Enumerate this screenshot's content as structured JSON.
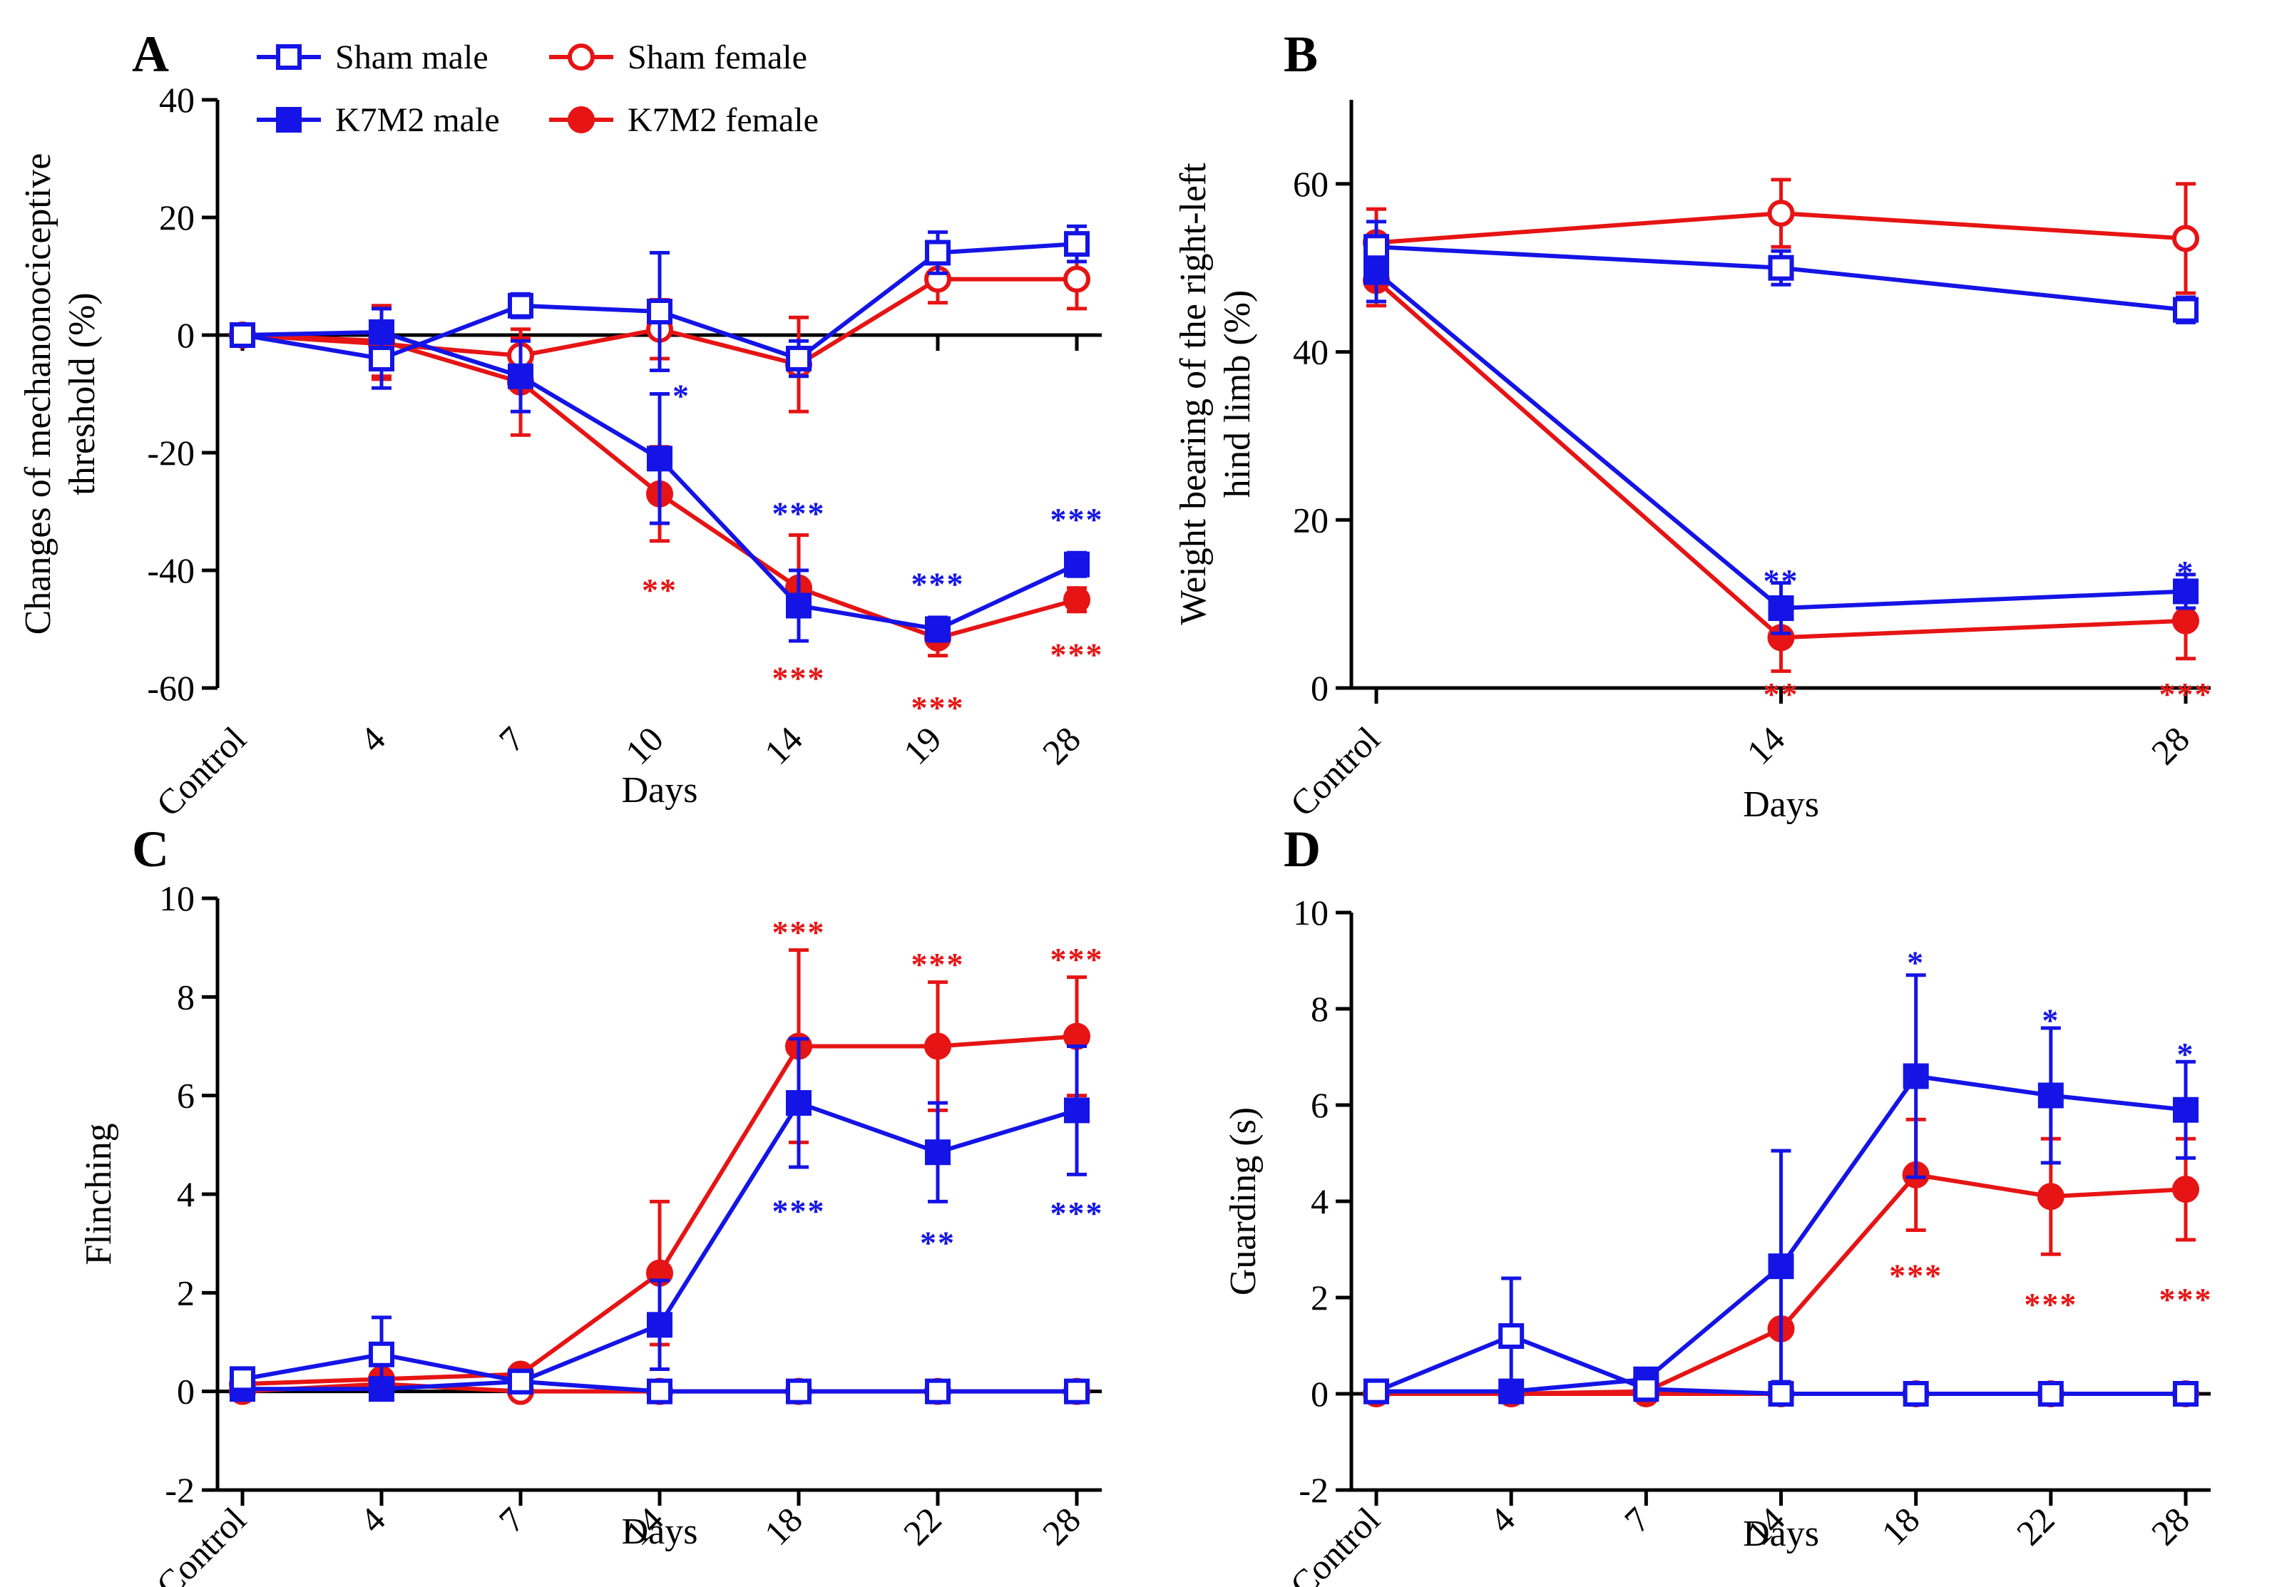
{
  "colors": {
    "male": "#1414e6",
    "female": "#e61414",
    "axis": "#000000"
  },
  "legend": {
    "entries": [
      {
        "label": "Sham male",
        "color": "#1414e6",
        "marker": "square",
        "filled": false
      },
      {
        "label": "Sham female",
        "color": "#e61414",
        "marker": "circle",
        "filled": false
      },
      {
        "label": "K7M2 male",
        "color": "#1414e6",
        "marker": "square",
        "filled": true
      },
      {
        "label": "K7M2 female",
        "color": "#e61414",
        "marker": "circle",
        "filled": true
      }
    ]
  },
  "chart_data": [
    {
      "id": "A",
      "letter": "A",
      "type": "line",
      "ylabel": "Changes of mechanonociceptive threshold (%)",
      "ylabel_lines": [
        "Changes of mechanonociceptive",
        "threshold (%)"
      ],
      "xlabel": "Days",
      "categories": [
        "Control",
        "4",
        "7",
        "10",
        "14",
        "19",
        "28"
      ],
      "ylim": [
        -60,
        40
      ],
      "yticks": [
        -60,
        -40,
        -20,
        0,
        20,
        40
      ],
      "series": [
        {
          "name": "Sham male",
          "color": "#1414e6",
          "marker": "square",
          "filled": false,
          "values": [
            0,
            -4,
            5,
            4,
            -4,
            14,
            15.5
          ],
          "errors": [
            0,
            5,
            2,
            10,
            3,
            3.5,
            3
          ]
        },
        {
          "name": "Sham female",
          "color": "#e61414",
          "marker": "circle",
          "filled": false,
          "values": [
            0,
            -1.5,
            -3.5,
            1,
            -5,
            9.5,
            9.5
          ],
          "errors": [
            0,
            6,
            3,
            5,
            8,
            4,
            5
          ]
        },
        {
          "name": "K7M2 male",
          "color": "#1414e6",
          "marker": "square",
          "filled": true,
          "values": [
            0,
            0.5,
            -7,
            -21,
            -46,
            -50,
            -39
          ],
          "errors": [
            0,
            4,
            6,
            11,
            6,
            2,
            2
          ]
        },
        {
          "name": "K7M2 female",
          "color": "#e61414",
          "marker": "circle",
          "filled": true,
          "values": [
            0,
            -1,
            -8,
            -27,
            -43,
            -51.5,
            -45
          ],
          "errors": [
            0,
            6,
            9,
            8,
            9,
            3,
            2
          ]
        }
      ],
      "annotations": [
        {
          "text": "*",
          "x": 3,
          "y": -10,
          "color": "#1414e6",
          "anchor": "start"
        },
        {
          "text": "**",
          "x": 3,
          "y": -43,
          "color": "#e61414",
          "anchor": "middle"
        },
        {
          "text": "***",
          "x": 4,
          "y": -30,
          "color": "#1414e6",
          "anchor": "middle"
        },
        {
          "text": "***",
          "x": 4,
          "y": -58,
          "color": "#e61414",
          "anchor": "middle"
        },
        {
          "text": "***",
          "x": 5,
          "y": -42,
          "color": "#1414e6",
          "anchor": "middle"
        },
        {
          "text": "***",
          "x": 5,
          "y": -63,
          "color": "#e61414",
          "anchor": "middle"
        },
        {
          "text": "***",
          "x": 6,
          "y": -31,
          "color": "#1414e6",
          "anchor": "middle"
        },
        {
          "text": "***",
          "x": 6,
          "y": -54,
          "color": "#e61414",
          "anchor": "middle"
        }
      ]
    },
    {
      "id": "B",
      "letter": "B",
      "type": "line",
      "ylabel": "Weight bearing of the right-left hind limb (%)",
      "ylabel_lines": [
        "Weight bearing of the right-left",
        "hind limb (%)"
      ],
      "xlabel": "Days",
      "categories": [
        "Control",
        "14",
        "28"
      ],
      "ylim": [
        0,
        70
      ],
      "yticks": [
        0,
        20,
        40,
        60
      ],
      "series": [
        {
          "name": "Sham male",
          "color": "#1414e6",
          "marker": "square",
          "filled": false,
          "values": [
            52.5,
            50,
            45
          ],
          "errors": [
            3,
            2,
            1.5
          ]
        },
        {
          "name": "Sham female",
          "color": "#e61414",
          "marker": "circle",
          "filled": false,
          "values": [
            53,
            56.5,
            53.5
          ],
          "errors": [
            4,
            4,
            6.5
          ]
        },
        {
          "name": "K7M2 male",
          "color": "#1414e6",
          "marker": "square",
          "filled": true,
          "values": [
            49.5,
            9.5,
            11.5
          ],
          "errors": [
            3.5,
            3,
            2
          ]
        },
        {
          "name": "K7M2 female",
          "color": "#e61414",
          "marker": "circle",
          "filled": true,
          "values": [
            48.5,
            6,
            8
          ],
          "errors": [
            3,
            4,
            4.5
          ]
        }
      ],
      "annotations": [
        {
          "text": "**",
          "x": 1,
          "y": 13,
          "color": "#1414e6",
          "anchor": "middle"
        },
        {
          "text": "**",
          "x": 1,
          "y": -0.5,
          "color": "#e61414",
          "anchor": "middle"
        },
        {
          "text": "*",
          "x": 2,
          "y": 14,
          "color": "#1414e6",
          "anchor": "middle"
        },
        {
          "text": "***",
          "x": 2,
          "y": -0.5,
          "color": "#e61414",
          "anchor": "middle"
        }
      ]
    },
    {
      "id": "C",
      "letter": "C",
      "type": "line",
      "ylabel": "Flinching",
      "ylabel_lines": [
        "Flinching"
      ],
      "xlabel": "Days",
      "categories": [
        "Control",
        "4",
        "7",
        "14",
        "18",
        "22",
        "28"
      ],
      "ylim": [
        -2,
        10
      ],
      "yticks": [
        -2,
        0,
        2,
        4,
        6,
        8,
        10
      ],
      "series": [
        {
          "name": "Sham male",
          "color": "#1414e6",
          "marker": "square",
          "filled": false,
          "values": [
            0.25,
            0.75,
            0.2,
            0,
            0,
            0,
            0
          ],
          "errors": [
            0.1,
            0.75,
            0.1,
            0,
            0,
            0,
            0
          ]
        },
        {
          "name": "Sham female",
          "color": "#e61414",
          "marker": "circle",
          "filled": false,
          "values": [
            0,
            0.15,
            0,
            0,
            0,
            0,
            0
          ],
          "errors": [
            0,
            0.1,
            0,
            0,
            0,
            0,
            0
          ]
        },
        {
          "name": "K7M2 male",
          "color": "#1414e6",
          "marker": "square",
          "filled": true,
          "values": [
            0.05,
            0.05,
            0.2,
            1.35,
            5.85,
            4.85,
            5.7
          ],
          "errors": [
            0.05,
            0.05,
            0.1,
            0.9,
            1.3,
            1.0,
            1.3
          ]
        },
        {
          "name": "K7M2 female",
          "color": "#e61414",
          "marker": "circle",
          "filled": true,
          "values": [
            0.15,
            0.25,
            0.35,
            2.4,
            7.0,
            7.0,
            7.2
          ],
          "errors": [
            0.1,
            0.15,
            0.15,
            1.45,
            1.95,
            1.3,
            1.2
          ]
        }
      ],
      "annotations": [
        {
          "text": "***",
          "x": 4,
          "y": 9.35,
          "color": "#e61414",
          "anchor": "middle"
        },
        {
          "text": "***",
          "x": 5,
          "y": 8.7,
          "color": "#e61414",
          "anchor": "middle"
        },
        {
          "text": "***",
          "x": 6,
          "y": 8.8,
          "color": "#e61414",
          "anchor": "middle"
        },
        {
          "text": "***",
          "x": 4,
          "y": 3.7,
          "color": "#1414e6",
          "anchor": "middle"
        },
        {
          "text": "**",
          "x": 5,
          "y": 3.05,
          "color": "#1414e6",
          "anchor": "middle"
        },
        {
          "text": "***",
          "x": 6,
          "y": 3.65,
          "color": "#1414e6",
          "anchor": "middle"
        }
      ]
    },
    {
      "id": "D",
      "letter": "D",
      "type": "line",
      "ylabel": "Guarding (s)",
      "ylabel_lines": [
        "Guarding (s)"
      ],
      "xlabel": "Days",
      "categories": [
        "Control",
        "4",
        "7",
        "14",
        "18",
        "22",
        "28"
      ],
      "ylim": [
        -2,
        10
      ],
      "yticks": [
        -2,
        0,
        2,
        4,
        6,
        8,
        10
      ],
      "series": [
        {
          "name": "Sham male",
          "color": "#1414e6",
          "marker": "square",
          "filled": false,
          "values": [
            0.05,
            1.2,
            0.1,
            0,
            0,
            0,
            0
          ],
          "errors": [
            0.05,
            1.2,
            0.1,
            0,
            0,
            0,
            0
          ]
        },
        {
          "name": "Sham female",
          "color": "#e61414",
          "marker": "circle",
          "filled": false,
          "values": [
            0,
            0,
            0,
            0,
            0,
            0,
            0
          ],
          "errors": [
            0,
            0,
            0,
            0,
            0,
            0,
            0
          ]
        },
        {
          "name": "K7M2 male",
          "color": "#1414e6",
          "marker": "square",
          "filled": true,
          "values": [
            0.05,
            0.05,
            0.3,
            2.65,
            6.6,
            6.2,
            5.9
          ],
          "errors": [
            0.05,
            0.05,
            0.15,
            2.4,
            2.1,
            1.4,
            1.0
          ]
        },
        {
          "name": "K7M2 female",
          "color": "#e61414",
          "marker": "circle",
          "filled": true,
          "values": [
            0,
            0,
            0.05,
            1.35,
            4.55,
            4.1,
            4.25
          ],
          "errors": [
            0,
            0,
            0.05,
            1.3,
            1.15,
            1.2,
            1.05
          ]
        }
      ],
      "annotations": [
        {
          "text": "*",
          "x": 4,
          "y": 9.0,
          "color": "#1414e6",
          "anchor": "middle"
        },
        {
          "text": "*",
          "x": 5,
          "y": 7.8,
          "color": "#1414e6",
          "anchor": "middle"
        },
        {
          "text": "*",
          "x": 6,
          "y": 7.1,
          "color": "#1414e6",
          "anchor": "middle"
        },
        {
          "text": "***",
          "x": 4,
          "y": 2.5,
          "color": "#e61414",
          "anchor": "middle"
        },
        {
          "text": "***",
          "x": 5,
          "y": 1.9,
          "color": "#e61414",
          "anchor": "middle"
        },
        {
          "text": "***",
          "x": 6,
          "y": 2.0,
          "color": "#e61414",
          "anchor": "middle"
        }
      ]
    }
  ]
}
